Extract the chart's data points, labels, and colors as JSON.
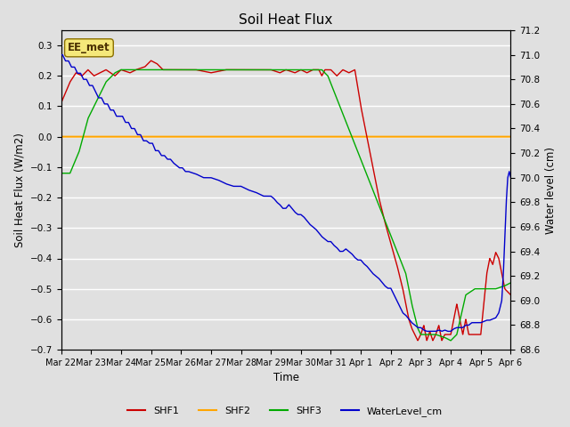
{
  "title": "Soil Heat Flux",
  "ylabel_left": "Soil Heat Flux (W/m2)",
  "ylabel_right": "Water level (cm)",
  "xlabel": "Time",
  "ylim_left": [
    -0.7,
    0.35
  ],
  "ylim_right": [
    68.6,
    71.2
  ],
  "yticks_left": [
    -0.7,
    -0.6,
    -0.5,
    -0.4,
    -0.3,
    -0.2,
    -0.1,
    0.0,
    0.1,
    0.2,
    0.3
  ],
  "yticks_right": [
    68.6,
    68.8,
    69.0,
    69.2,
    69.4,
    69.6,
    69.8,
    70.0,
    70.2,
    70.4,
    70.6,
    70.8,
    71.0,
    71.2
  ],
  "xtick_labels": [
    "Mar 22",
    "Mar 23",
    "Mar 24",
    "Mar 25",
    "Mar 26",
    "Mar 27",
    "Mar 28",
    "Mar 29",
    "Mar 30",
    "Mar 31",
    "Apr 1",
    "Apr 2",
    "Apr 3",
    "Apr 4",
    "Apr 5",
    "Apr 6"
  ],
  "colors": {
    "SHF1": "#cc0000",
    "SHF2": "#ffa500",
    "SHF3": "#00aa00",
    "WaterLevel": "#0000cc"
  },
  "legend_label_box": "EE_met",
  "bg_color": "#e0e0e0"
}
